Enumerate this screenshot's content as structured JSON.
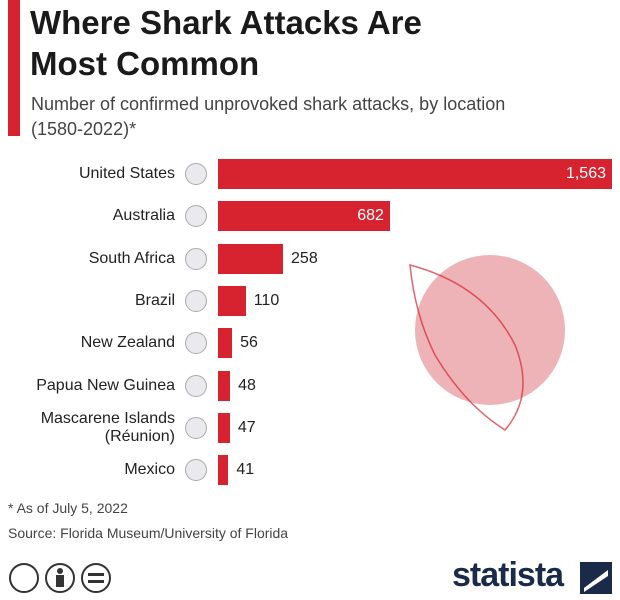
{
  "chart_data": {
    "type": "bar",
    "orientation": "horizontal",
    "title": "Where Shark Attacks Are Most Common",
    "subtitle": "Number of confirmed unprovoked shark attacks, by location (1580-2022)*",
    "categories": [
      "United States",
      "Australia",
      "South Africa",
      "Brazil",
      "New Zealand",
      "Papua New Guinea",
      "Mascarene Islands (Réunion)",
      "Mexico"
    ],
    "values": [
      1563,
      682,
      258,
      110,
      56,
      48,
      47,
      41
    ],
    "value_labels": [
      "1,563",
      "682",
      "258",
      "110",
      "56",
      "48",
      "47",
      "41"
    ],
    "color": "#d7232f",
    "footnote": "* As of July 5, 2022",
    "source": "Source: Florida Museum/University of Florida",
    "brand": "statista"
  }
}
